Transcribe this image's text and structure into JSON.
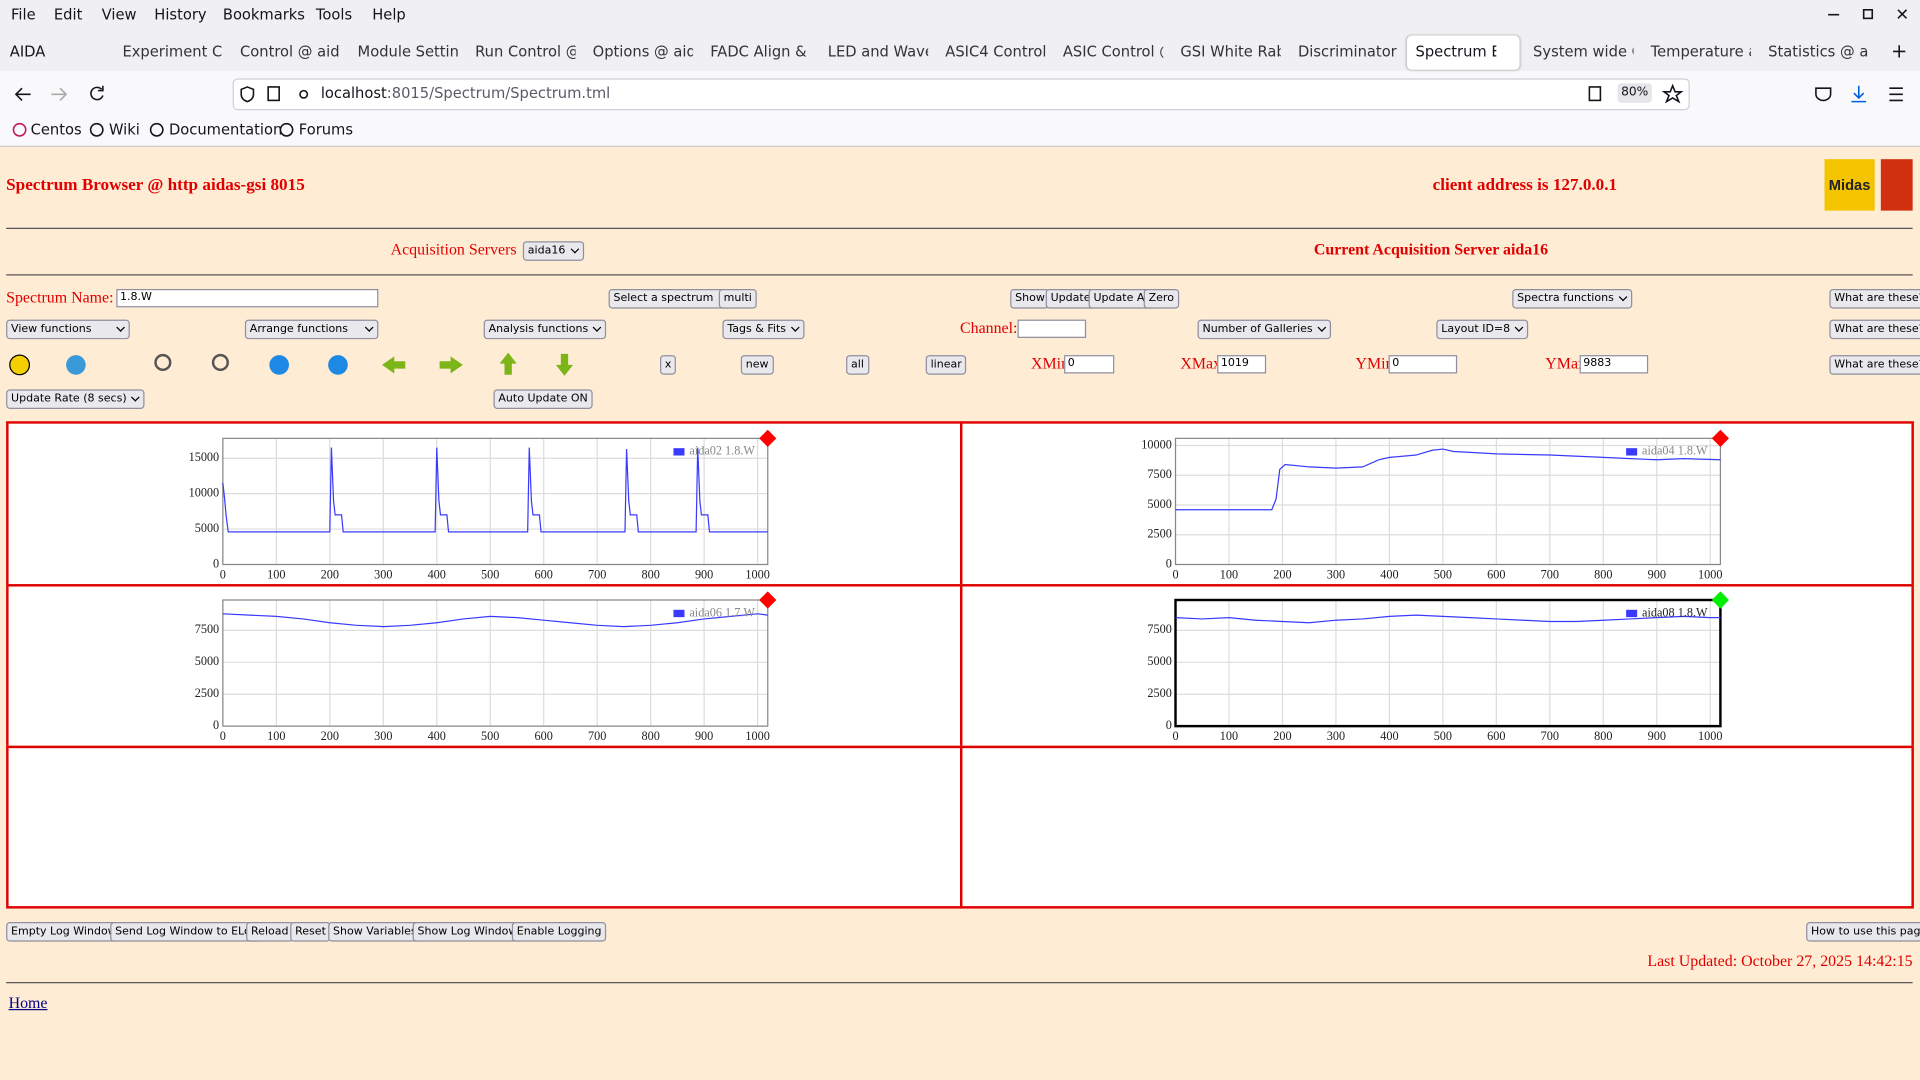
{
  "browser": {
    "window_title": "AIDA",
    "menu": [
      "File",
      "Edit",
      "View",
      "History",
      "Bookmarks",
      "Tools",
      "Help"
    ],
    "tabs": [
      {
        "label": "Experiment Co"
      },
      {
        "label": "Control @ aida"
      },
      {
        "label": "Module Settinc"
      },
      {
        "label": "Run Control @"
      },
      {
        "label": "Options @ aid"
      },
      {
        "label": "FADC Align & C"
      },
      {
        "label": "LED and Wave"
      },
      {
        "label": "ASIC4 Control"
      },
      {
        "label": "ASIC Control @"
      },
      {
        "label": "GSI White Rab"
      },
      {
        "label": "Discriminator c"
      },
      {
        "label": "Spectrum Br",
        "active": true
      },
      {
        "label": "System wide C"
      },
      {
        "label": "Temperature a"
      },
      {
        "label": "Statistics @ ai"
      }
    ],
    "url_host": "localhost",
    "url_path": ":8015/Spectrum/Spectrum.tml",
    "zoom": "80%",
    "bookmarks": [
      "Centos",
      "Wiki",
      "Documentation",
      "Forums"
    ]
  },
  "header": {
    "title": "Spectrum Browser @ http aidas-gsi 8015",
    "client": "client address is 127.0.0.1",
    "logo": "Midas"
  },
  "acquisition": {
    "label": "Acquisition Servers",
    "server": "aida16",
    "current": "Current Acquisition Server aida16"
  },
  "controls": {
    "spectrum_name_label": "Spectrum Name:",
    "spectrum_name": "1.8.W",
    "select_spectrum": "Select a spectrum",
    "multi": "multi",
    "show": "Show",
    "update": "Update",
    "update_all": "Update All",
    "zero": "Zero",
    "spectra_functions": "Spectra functions",
    "help": "What are these?",
    "view_functions": "View functions",
    "arrange_functions": "Arrange functions",
    "analysis_functions": "Analysis functions",
    "tags_fits": "Tags & Fits",
    "channel_label": "Channel:",
    "galleries": "Number of Galleries",
    "layout": "Layout ID=8",
    "x_btn": "x",
    "new_btn": "new",
    "all_btn": "all",
    "linear_btn": "linear",
    "xmin_label": "XMin",
    "xmin": 0,
    "xmax_label": "XMax",
    "xmax": 1019,
    "ymin_label": "YMin",
    "ymin": 0,
    "ymax_label": "YMax",
    "ymax": 9883,
    "update_rate": "Update Rate (8 secs)",
    "auto_update": "Auto Update ON"
  },
  "plots": [
    {
      "type": "line",
      "legend": "aida02 1.8.W",
      "color": "#3a3aff",
      "marker_color": "#ff0000",
      "selected": false,
      "xlim": [
        0,
        1019
      ],
      "ylim": [
        0,
        17800
      ],
      "xticks": [
        0,
        100,
        200,
        300,
        400,
        500,
        600,
        700,
        800,
        900,
        1000
      ],
      "yticks": [
        0,
        5000,
        10000,
        15000
      ],
      "x": [
        0,
        3,
        6,
        10,
        200,
        203,
        207,
        210,
        222,
        225,
        397,
        400,
        404,
        407,
        419,
        422,
        570,
        573,
        577,
        580,
        592,
        595,
        752,
        755,
        759,
        762,
        774,
        777,
        885,
        888,
        892,
        895,
        907,
        910,
        1019
      ],
      "values": [
        11500,
        9500,
        7000,
        4600,
        4600,
        16500,
        9000,
        7000,
        7000,
        4600,
        4600,
        16500,
        9000,
        7000,
        7000,
        4600,
        4600,
        16500,
        9000,
        7000,
        7000,
        4600,
        4600,
        16300,
        9000,
        7000,
        7000,
        4600,
        4600,
        16500,
        9000,
        7000,
        7000,
        4600,
        4600
      ]
    },
    {
      "type": "line",
      "legend": "aida04 1.8.W",
      "color": "#3a3aff",
      "marker_color": "#ff0000",
      "selected": false,
      "xlim": [
        0,
        1019
      ],
      "ylim": [
        0,
        10600
      ],
      "xticks": [
        0,
        100,
        200,
        300,
        400,
        500,
        600,
        700,
        800,
        900,
        1000
      ],
      "yticks": [
        0,
        2500,
        5000,
        7500,
        10000
      ],
      "x": [
        0,
        100,
        180,
        188,
        195,
        205,
        250,
        300,
        350,
        380,
        400,
        450,
        480,
        500,
        520,
        560,
        600,
        700,
        800,
        850,
        900,
        950,
        1019
      ],
      "values": [
        4600,
        4600,
        4600,
        5500,
        8000,
        8400,
        8200,
        8100,
        8200,
        8800,
        9000,
        9200,
        9600,
        9700,
        9500,
        9400,
        9300,
        9200,
        9000,
        8900,
        8800,
        8900,
        8800
      ]
    },
    {
      "type": "line",
      "legend": "aida06 1.7.W",
      "color": "#3a3aff",
      "marker_color": "#ff0000",
      "selected": false,
      "xlim": [
        0,
        1019
      ],
      "ylim": [
        0,
        9883
      ],
      "xticks": [
        0,
        100,
        200,
        300,
        400,
        500,
        600,
        700,
        800,
        900,
        1000
      ],
      "yticks": [
        0,
        2500,
        5000,
        7500
      ],
      "x": [
        0,
        50,
        100,
        150,
        200,
        250,
        300,
        350,
        400,
        450,
        500,
        550,
        600,
        650,
        700,
        750,
        800,
        850,
        900,
        950,
        1000,
        1019
      ],
      "values": [
        8800,
        8700,
        8600,
        8400,
        8100,
        7900,
        7800,
        7900,
        8100,
        8400,
        8600,
        8500,
        8300,
        8100,
        7900,
        7800,
        7900,
        8100,
        8400,
        8600,
        8800,
        8700
      ]
    },
    {
      "type": "line",
      "legend": "aida08 1.8.W",
      "color": "#3a3aff",
      "marker_color": "#00ee00",
      "selected": true,
      "xlim": [
        0,
        1019
      ],
      "ylim": [
        0,
        9883
      ],
      "xticks": [
        0,
        100,
        200,
        300,
        400,
        500,
        600,
        700,
        800,
        900,
        1000
      ],
      "yticks": [
        0,
        2500,
        5000,
        7500
      ],
      "x": [
        0,
        50,
        100,
        150,
        200,
        250,
        300,
        350,
        400,
        450,
        500,
        550,
        600,
        650,
        700,
        750,
        800,
        850,
        900,
        950,
        1000,
        1019
      ],
      "values": [
        8500,
        8400,
        8500,
        8300,
        8200,
        8100,
        8300,
        8400,
        8600,
        8700,
        8600,
        8500,
        8400,
        8300,
        8200,
        8200,
        8300,
        8400,
        8500,
        8600,
        8500,
        8500
      ]
    }
  ],
  "footer": {
    "buttons": [
      "Empty Log Window",
      "Send Log Window to ELog",
      "Reload",
      "Reset",
      "Show Variables",
      "Show Log Window",
      "Enable Logging"
    ],
    "how_to": "How to use this page",
    "last_updated": "Last Updated: October 27, 2025 14:42:15",
    "home": "Home"
  }
}
